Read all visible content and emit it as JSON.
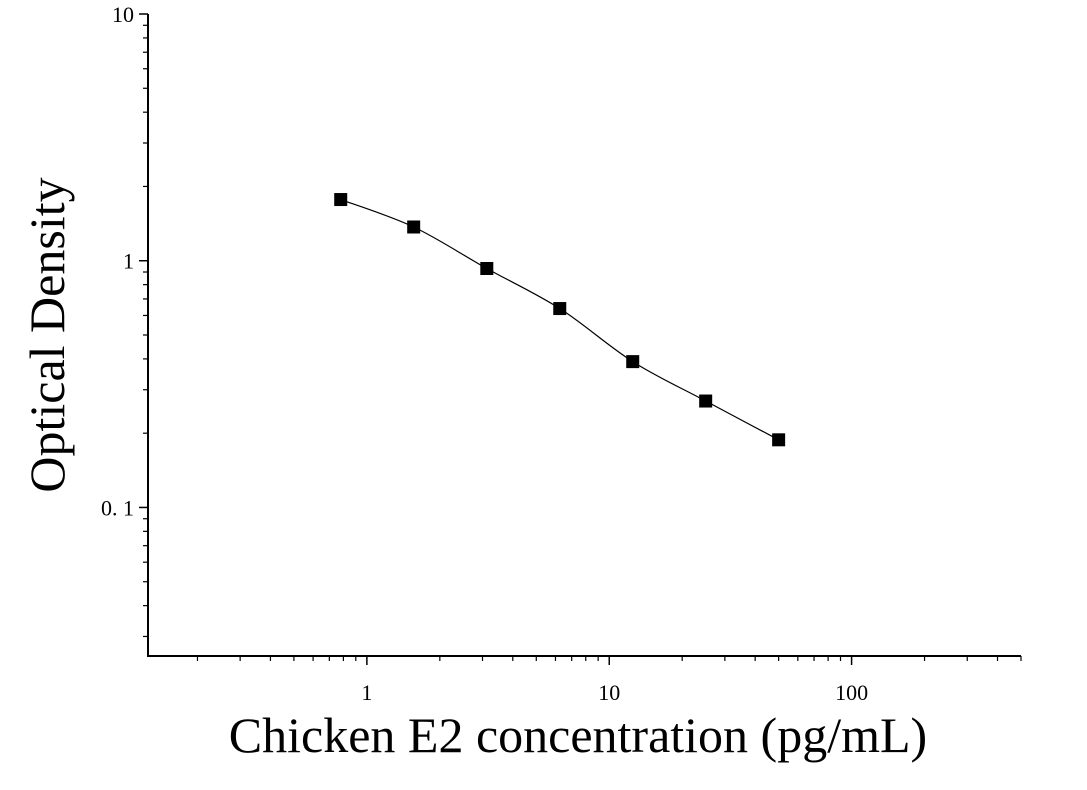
{
  "chart_data": {
    "type": "scatter",
    "xlabel": "Chicken E2 concentration (pg/mL)",
    "ylabel": "Optical Density",
    "x": [
      0.78,
      1.56,
      3.125,
      6.25,
      12.5,
      25,
      50
    ],
    "values": [
      1.77,
      1.37,
      0.93,
      0.64,
      0.39,
      0.27,
      0.188
    ],
    "color": "#000000",
    "curve": true,
    "xscale": "log",
    "yscale": "log",
    "xlim": [
      0.125,
      500
    ],
    "ylim": [
      0.025,
      10
    ],
    "xticks": [
      1,
      10,
      100
    ],
    "yticks": [
      {
        "value": 0.1,
        "label": "0. 1"
      },
      1,
      10
    ],
    "xminorticks": [
      0.2,
      0.3,
      0.4,
      0.5,
      0.6,
      0.7,
      0.8,
      0.9,
      2,
      3,
      4,
      5,
      6,
      7,
      8,
      9,
      20,
      30,
      40,
      50,
      60,
      70,
      80,
      90,
      200,
      300,
      400,
      500
    ],
    "yminorticks": [
      0.03,
      0.04,
      0.05,
      0.06,
      0.07,
      0.08,
      0.09,
      0.2,
      0.3,
      0.4,
      0.5,
      0.6,
      0.7,
      0.8,
      0.9,
      2,
      3,
      4,
      5,
      6,
      7,
      8,
      9
    ]
  }
}
